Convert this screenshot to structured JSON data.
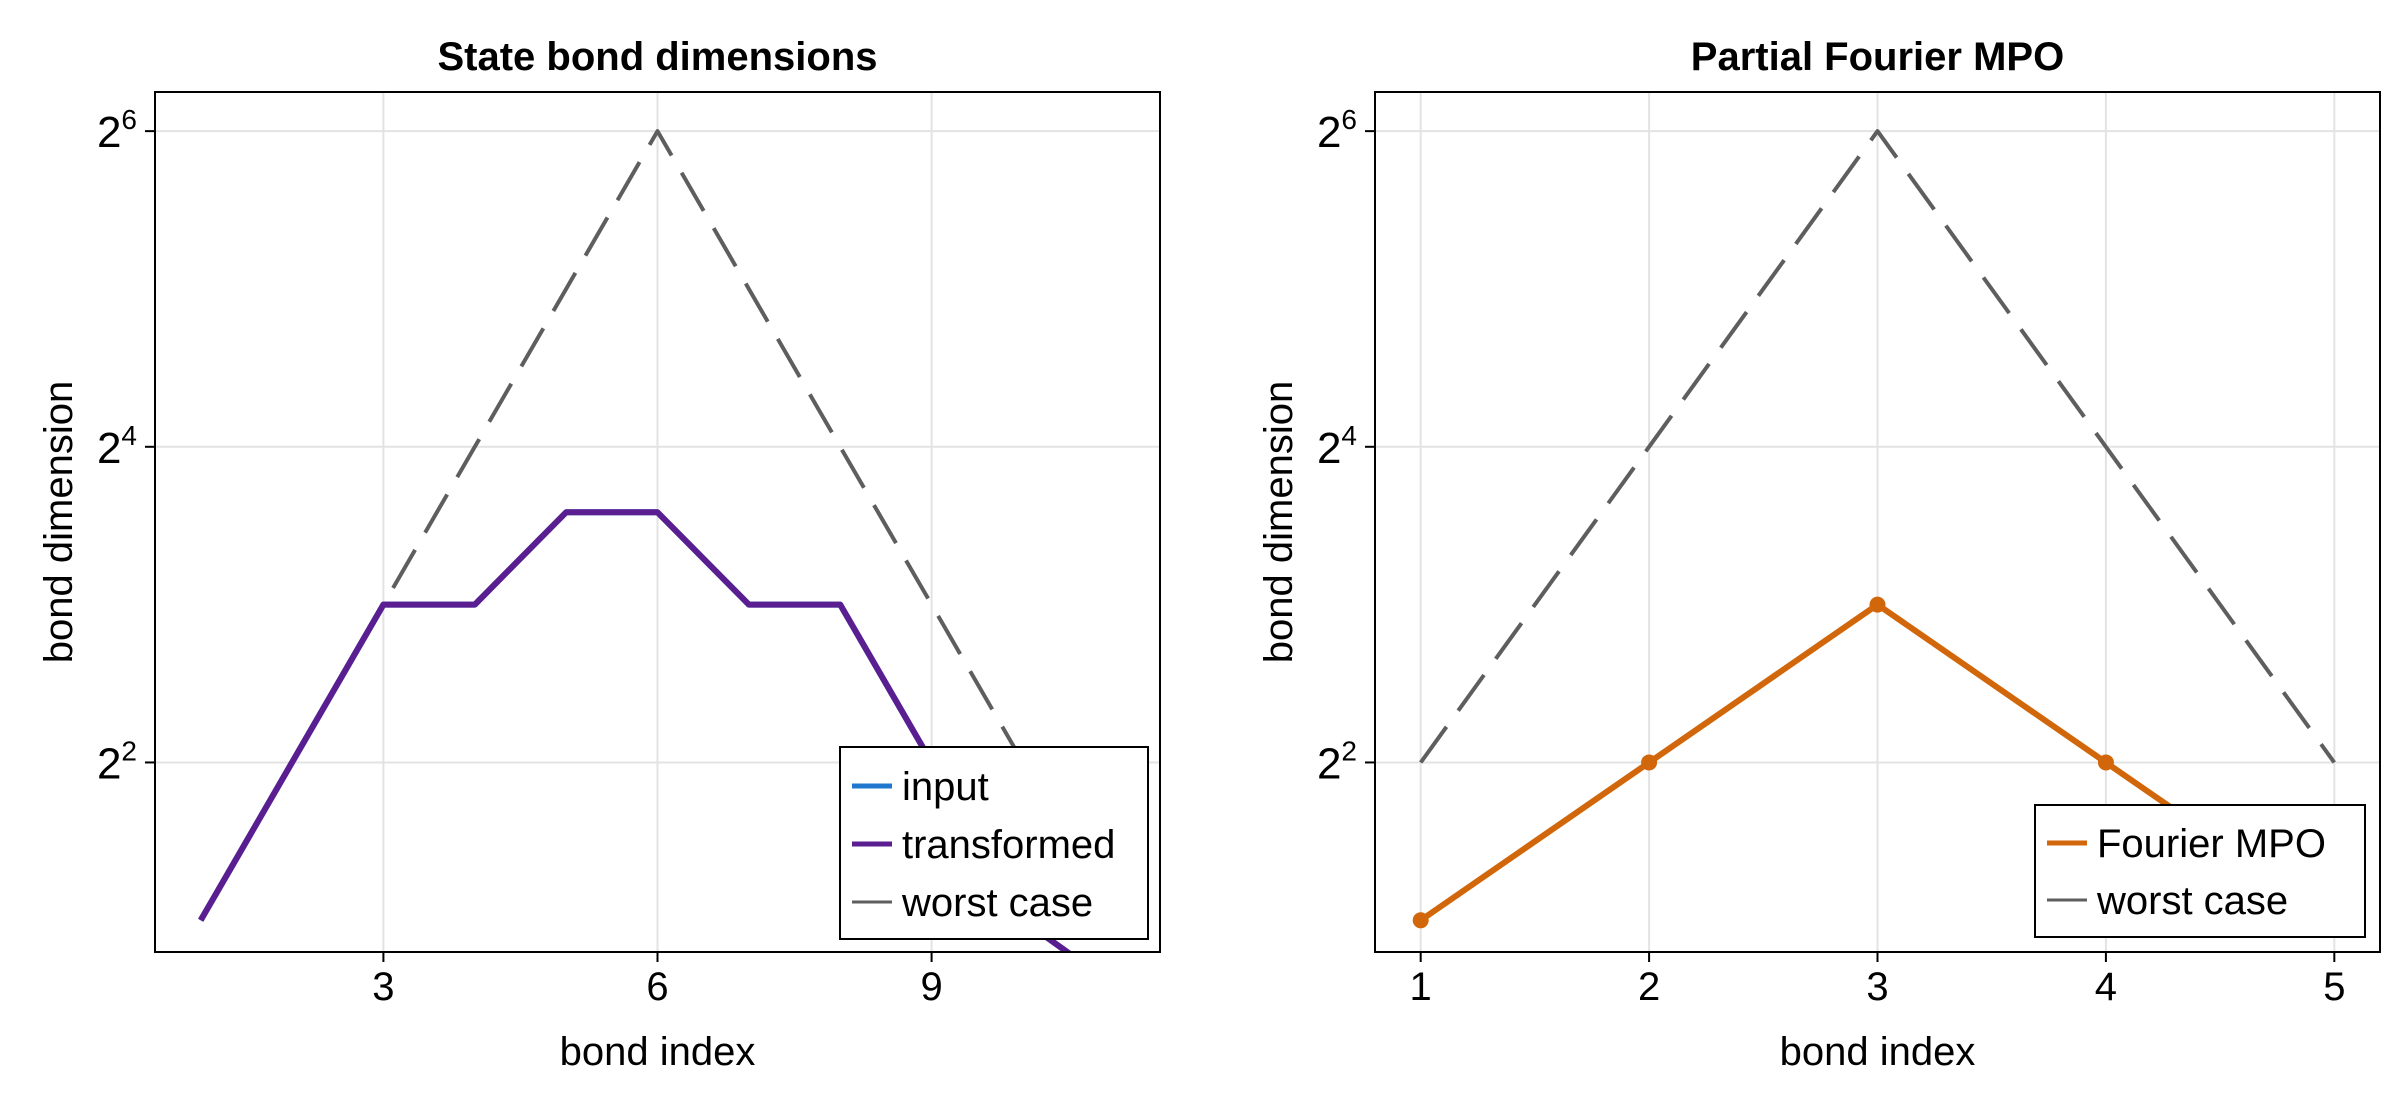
{
  "chart_data": [
    {
      "type": "line",
      "title": "State bond dimensions",
      "xlabel": "bond index",
      "ylabel": "bond dimension",
      "xlim": [
        0.5,
        11.5
      ],
      "ylim": [
        1.74,
        76
      ],
      "yscale": "log2",
      "x_ticks": [
        3,
        6,
        9
      ],
      "x_tick_labels": [
        "3",
        "6",
        "9"
      ],
      "y_ticks": [
        4,
        16,
        64
      ],
      "y_tick_bases": [
        "2",
        "2",
        "2"
      ],
      "y_tick_exponents": [
        "2",
        "4",
        "6"
      ],
      "grid": true,
      "legend_position": "bottom-right",
      "series": [
        {
          "name": "input",
          "color": "#1f77d0",
          "style": "solid",
          "x": [
            1,
            2,
            3,
            4,
            5,
            6,
            7,
            8,
            9,
            10,
            11
          ],
          "y": [
            2,
            4,
            8,
            8,
            12,
            12,
            8,
            8,
            4,
            2,
            1.5
          ]
        },
        {
          "name": "transformed",
          "color": "#5a1e91",
          "style": "solid",
          "x": [
            1,
            2,
            3,
            4,
            5,
            6,
            7,
            8,
            9,
            10,
            11
          ],
          "y": [
            2,
            4,
            8,
            8,
            12,
            12,
            8,
            8,
            4,
            2,
            1.5
          ]
        },
        {
          "name": "worst case",
          "color": "#5e5e5e",
          "style": "dashed",
          "x": [
            1,
            2,
            3,
            4,
            5,
            6,
            7,
            8,
            9,
            10,
            11
          ],
          "y": [
            2,
            4,
            8,
            16,
            32,
            64,
            32,
            16,
            8,
            4,
            2
          ]
        }
      ]
    },
    {
      "type": "line",
      "title": "Partial Fourier MPO",
      "xlabel": "bond index",
      "ylabel": "bond dimension",
      "xlim": [
        0.8,
        5.2
      ],
      "ylim": [
        1.74,
        76
      ],
      "yscale": "log2",
      "x_ticks": [
        1,
        2,
        3,
        4,
        5
      ],
      "x_tick_labels": [
        "1",
        "2",
        "3",
        "4",
        "5"
      ],
      "y_ticks": [
        4,
        16,
        64
      ],
      "y_tick_bases": [
        "2",
        "2",
        "2"
      ],
      "y_tick_exponents": [
        "2",
        "4",
        "6"
      ],
      "grid": true,
      "legend_position": "bottom-right",
      "series": [
        {
          "name": "Fourier MPO",
          "color": "#d1670a",
          "style": "solid",
          "markers": true,
          "x": [
            1,
            2,
            3,
            4,
            5
          ],
          "y": [
            2,
            4,
            8,
            4,
            2
          ]
        },
        {
          "name": "worst case",
          "color": "#5e5e5e",
          "style": "dashed",
          "x": [
            1,
            2,
            3,
            4,
            5
          ],
          "y": [
            4,
            16,
            64,
            16,
            4
          ]
        }
      ]
    }
  ]
}
